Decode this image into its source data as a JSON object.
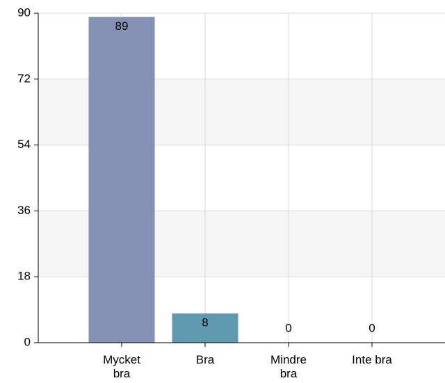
{
  "chart_data": {
    "type": "bar",
    "categories": [
      "Mycket bra",
      "Bra",
      "Mindre bra",
      "Inte bra"
    ],
    "values": [
      89,
      8,
      0,
      0
    ],
    "colors": [
      "#8491b4",
      "#5f9ab0",
      "#8491b4",
      "#5f9ab0"
    ],
    "ylim": [
      0,
      90
    ],
    "yticks": [
      0,
      18,
      36,
      54,
      72,
      90
    ],
    "grid": true
  }
}
